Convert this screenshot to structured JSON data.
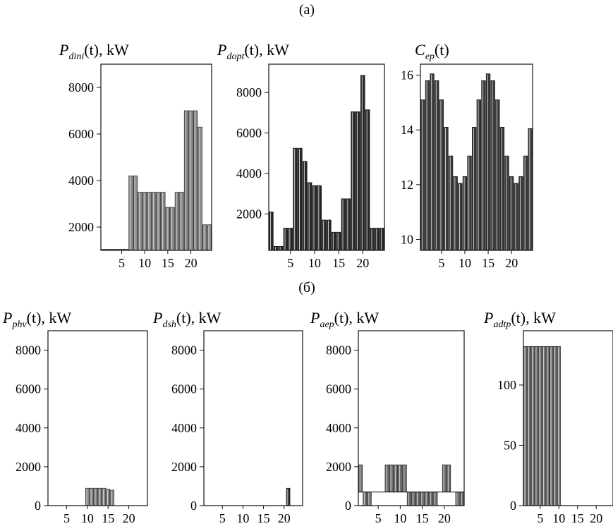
{
  "figure": {
    "section_a_label": "(a)",
    "section_b_label": "(б)"
  },
  "chart_data": [
    {
      "id": "pdini",
      "type": "bar",
      "title": {
        "main": "P",
        "sub": "dini",
        "rest": "(t), kW"
      },
      "x": [
        1,
        2,
        3,
        4,
        5,
        6,
        7,
        8,
        9,
        10,
        11,
        12,
        13,
        14,
        15,
        16,
        17,
        18,
        19,
        20,
        21,
        22,
        23,
        24
      ],
      "values": [
        1050,
        1050,
        1050,
        1050,
        1050,
        1050,
        4200,
        4200,
        3500,
        3500,
        3500,
        3500,
        3500,
        3500,
        2850,
        2850,
        3500,
        3500,
        7000,
        7000,
        7000,
        6300,
        2100,
        2100
      ],
      "xlim": [
        0.5,
        24.5
      ],
      "ylim": [
        1000,
        9000
      ],
      "xticks": [
        5,
        10,
        15,
        20
      ],
      "yticks": [
        2000,
        4000,
        6000,
        8000
      ],
      "bar_color": "#8a8a8a"
    },
    {
      "id": "pdopt",
      "type": "bar",
      "title": {
        "main": "P",
        "sub": "dopt",
        "rest": "(t), kW"
      },
      "x": [
        1,
        2,
        3,
        4,
        5,
        6,
        7,
        8,
        9,
        10,
        11,
        12,
        13,
        14,
        15,
        16,
        17,
        18,
        19,
        20,
        21,
        22,
        23,
        24
      ],
      "values": [
        2100,
        400,
        400,
        1300,
        1300,
        5250,
        5250,
        4600,
        3550,
        3400,
        3400,
        1700,
        1700,
        1100,
        1100,
        2750,
        2750,
        7050,
        7050,
        8850,
        7150,
        1300,
        1300,
        1300
      ],
      "xlim": [
        0.5,
        24.5
      ],
      "ylim": [
        200,
        9400
      ],
      "xticks": [
        5,
        10,
        15,
        20
      ],
      "yticks": [
        2000,
        4000,
        6000,
        8000
      ],
      "bar_color": "#262626"
    },
    {
      "id": "cep",
      "type": "bar",
      "title": {
        "main": "C",
        "sub": "ep",
        "rest": "(t)"
      },
      "x": [
        1,
        2,
        3,
        4,
        5,
        6,
        7,
        8,
        9,
        10,
        11,
        12,
        13,
        14,
        15,
        16,
        17,
        18,
        19,
        20,
        21,
        22,
        23,
        24
      ],
      "values": [
        15.1,
        15.8,
        16.05,
        15.8,
        15.1,
        14.1,
        13.05,
        12.3,
        12.05,
        12.3,
        13.05,
        14.1,
        15.1,
        15.8,
        16.05,
        15.8,
        15.1,
        14.1,
        13.05,
        12.3,
        12.05,
        12.3,
        13.05,
        14.05
      ],
      "xlim": [
        0.5,
        24.5
      ],
      "ylim": [
        9.6,
        16.4
      ],
      "xticks": [
        5,
        10,
        15,
        20
      ],
      "yticks": [
        10,
        12,
        14,
        16
      ],
      "bar_color": "#3a3a3a"
    },
    {
      "id": "pphv",
      "type": "bar",
      "title": {
        "main": "P",
        "sub": "phv",
        "rest": "(t), kW"
      },
      "x": [
        1,
        2,
        3,
        4,
        5,
        6,
        7,
        8,
        9,
        10,
        11,
        12,
        13,
        14,
        15,
        16,
        17,
        18,
        19,
        20,
        21,
        22,
        23,
        24
      ],
      "values": [
        0,
        0,
        0,
        0,
        0,
        0,
        0,
        0,
        0,
        900,
        900,
        900,
        900,
        900,
        850,
        800,
        0,
        0,
        0,
        0,
        0,
        0,
        0,
        0
      ],
      "xlim": [
        0.5,
        24.5
      ],
      "ylim": [
        0,
        9000
      ],
      "xticks": [
        5,
        10,
        15,
        20
      ],
      "yticks": [
        0,
        2000,
        4000,
        6000,
        8000
      ],
      "bar_color": "#8a8a8a"
    },
    {
      "id": "pdsh",
      "type": "bar",
      "title": {
        "main": "P",
        "sub": "dsh",
        "rest": "(t), kW"
      },
      "x": [
        1,
        2,
        3,
        4,
        5,
        6,
        7,
        8,
        9,
        10,
        11,
        12,
        13,
        14,
        15,
        16,
        17,
        18,
        19,
        20,
        21,
        22,
        23,
        24
      ],
      "values": [
        0,
        0,
        0,
        0,
        0,
        0,
        0,
        0,
        0,
        0,
        0,
        0,
        0,
        0,
        0,
        0,
        0,
        0,
        0,
        0,
        900,
        0,
        0,
        0
      ],
      "xlim": [
        0.5,
        24.5
      ],
      "ylim": [
        0,
        9000
      ],
      "xticks": [
        5,
        10,
        15,
        20
      ],
      "yticks": [
        0,
        2000,
        4000,
        6000,
        8000
      ],
      "bar_color": "#262626"
    },
    {
      "id": "paep",
      "type": "bar",
      "title": {
        "main": "P",
        "sub": "aep",
        "rest": "(t), kW"
      },
      "x": [
        1,
        2,
        3,
        4,
        5,
        6,
        7,
        8,
        9,
        10,
        11,
        12,
        13,
        14,
        15,
        16,
        17,
        18,
        19,
        20,
        21,
        22,
        23,
        24
      ],
      "values": [
        1400,
        -700,
        -700,
        0,
        0,
        0,
        1400,
        1400,
        1400,
        1400,
        1400,
        -700,
        -700,
        -700,
        -700,
        -700,
        -700,
        -700,
        0,
        1400,
        1400,
        0,
        -700,
        -700
      ],
      "baseline": 700,
      "xlim": [
        0.5,
        24.5
      ],
      "ylim": [
        0,
        9000
      ],
      "xticks": [
        5,
        10,
        15,
        20
      ],
      "yticks": [
        0,
        2000,
        4000,
        6000,
        8000
      ],
      "bar_color": "#6e6e6e"
    },
    {
      "id": "padtp",
      "type": "bar",
      "title": {
        "main": "P",
        "sub": "adtp",
        "rest": "(t), kW"
      },
      "x": [
        1,
        2,
        3,
        4,
        5,
        6,
        7,
        8,
        9,
        10,
        11,
        12,
        13,
        14,
        15,
        16,
        17,
        18,
        19,
        20,
        21,
        22,
        23,
        24
      ],
      "values": [
        132,
        132,
        132,
        132,
        132,
        132,
        132,
        132,
        132,
        132,
        0,
        0,
        0,
        0,
        0,
        0,
        0,
        0,
        0,
        0,
        0,
        0,
        0,
        0
      ],
      "xlim": [
        0.5,
        24.5
      ],
      "ylim": [
        0,
        145
      ],
      "xticks": [
        5,
        10,
        15,
        20
      ],
      "yticks": [
        0,
        50,
        100
      ],
      "bar_color": "#7a7a7a"
    }
  ]
}
